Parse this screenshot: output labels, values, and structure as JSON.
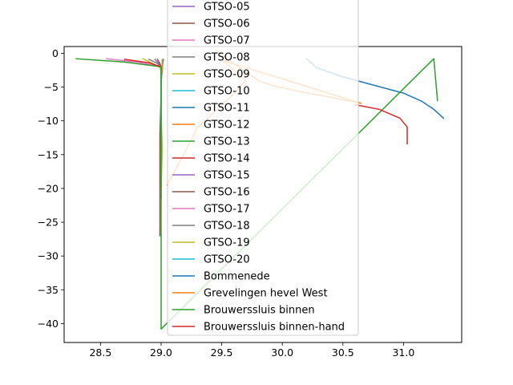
{
  "chart_data": {
    "type": "line",
    "title": "",
    "xlabel": "",
    "ylabel": "",
    "xlim": [
      28.2,
      31.48
    ],
    "ylim": [
      -42.8,
      1.0
    ],
    "xticks": [
      28.5,
      29.0,
      29.5,
      30.0,
      30.5,
      31.0
    ],
    "xtick_labels": [
      "28.5",
      "29.0",
      "29.5",
      "30.0",
      "30.5",
      "31.0"
    ],
    "yticks": [
      0,
      -5,
      -10,
      -15,
      -20,
      -25,
      -30,
      -35,
      -40
    ],
    "ytick_labels": [
      "0",
      "−5",
      "−10",
      "−15",
      "−20",
      "−25",
      "−30",
      "−35",
      "−40"
    ],
    "grid": false,
    "legend_placement": "upper-center",
    "series": [
      {
        "name": "GTSO-05",
        "color": "#9467bd",
        "x": [
          28.95,
          28.98,
          29.0,
          29.0
        ],
        "y": [
          -0.9,
          -1.5,
          -2.0,
          -2.5
        ]
      },
      {
        "name": "GTSO-06",
        "color": "#8c564b",
        "x": [
          28.97,
          28.99,
          29.0,
          29.0
        ],
        "y": [
          -0.9,
          -1.5,
          -2.0,
          -2.6
        ]
      },
      {
        "name": "GTSO-07",
        "color": "#e377c2",
        "x": [
          28.55,
          28.8,
          28.98,
          29.0,
          29.0
        ],
        "y": [
          -0.8,
          -1.3,
          -1.9,
          -2.3,
          -3.0
        ]
      },
      {
        "name": "GTSO-08",
        "color": "#7f7f7f",
        "x": [
          28.9,
          28.97,
          29.0,
          29.0
        ],
        "y": [
          -0.9,
          -1.5,
          -2.1,
          -2.8
        ]
      },
      {
        "name": "GTSO-09",
        "color": "#bcbd22",
        "x": [
          28.85,
          28.93,
          28.99,
          29.0
        ],
        "y": [
          -0.8,
          -1.5,
          -2.1,
          -2.6
        ]
      },
      {
        "name": "GTSO-10",
        "color": "#17becf",
        "x": [
          29.02,
          29.01,
          29.0,
          29.0,
          29.0
        ],
        "y": [
          -0.9,
          -2.0,
          -3.5,
          -5.0,
          -6.5
        ]
      },
      {
        "name": "GTSO-11",
        "color": "#1f77b4",
        "x": [
          29.01,
          29.01,
          29.0,
          29.0,
          29.0
        ],
        "y": [
          -1.0,
          -2.5,
          -4.0,
          -6.0,
          -8.0
        ]
      },
      {
        "name": "GTSO-12",
        "color": "#ff7f0e",
        "x": [
          29.01,
          29.01,
          29.0,
          29.0
        ],
        "y": [
          -0.9,
          -2.5,
          -4.0,
          -5.5
        ]
      },
      {
        "name": "GTSO-13",
        "color": "#2ca02c",
        "x": [
          28.3,
          28.7,
          29.0,
          29.0,
          29.0
        ],
        "y": [
          -0.8,
          -1.3,
          -2.0,
          -3.0,
          -4.0
        ]
      },
      {
        "name": "GTSO-14",
        "color": "#d62728",
        "x": [
          28.7,
          28.9,
          29.0,
          29.0,
          29.0
        ],
        "y": [
          -0.9,
          -1.4,
          -2.0,
          -3.0,
          -4.5
        ]
      },
      {
        "name": "GTSO-15",
        "color": "#9467bd",
        "x": [
          29.0,
          29.0,
          29.0,
          29.0,
          29.0,
          29.0
        ],
        "y": [
          -2.0,
          -5.0,
          -9.0,
          -13.0,
          -17.0,
          -21.5
        ]
      },
      {
        "name": "GTSO-16",
        "color": "#8c564b",
        "x": [
          29.0,
          29.0,
          28.99,
          28.99,
          28.99,
          28.99
        ],
        "y": [
          -2.0,
          -6.0,
          -12.0,
          -18.0,
          -24.0,
          -27.0
        ]
      },
      {
        "name": "GTSO-17",
        "color": "#e377c2",
        "x": [
          29.0,
          29.0,
          29.0,
          29.0
        ],
        "y": [
          -2.0,
          -4.0,
          -6.0,
          -9.0
        ]
      },
      {
        "name": "GTSO-18",
        "color": "#7f7f7f",
        "x": [
          29.0,
          29.0,
          29.0,
          29.0,
          29.0
        ],
        "y": [
          -2.0,
          -5.0,
          -9.0,
          -14.0,
          -20.0
        ]
      },
      {
        "name": "GTSO-19",
        "color": "#bcbd22",
        "x": [
          29.0,
          29.0,
          29.0,
          29.01,
          29.0
        ],
        "y": [
          -2.0,
          -5.0,
          -9.0,
          -14.0,
          -20.0
        ]
      },
      {
        "name": "GTSO-20",
        "color": "#17becf",
        "x": [
          29.0,
          29.0,
          29.0,
          29.0,
          29.0
        ],
        "y": [
          -2.0,
          -4.0,
          -7.0,
          -10.0,
          -13.0
        ]
      },
      {
        "name": "Bommenede",
        "color": "#1f77b4",
        "x": [
          30.2,
          30.28,
          30.5,
          30.75,
          31.0,
          31.15,
          31.25,
          31.33
        ],
        "y": [
          -0.8,
          -2.1,
          -3.5,
          -4.7,
          -5.9,
          -7.1,
          -8.3,
          -9.6
        ]
      },
      {
        "name": "Grevelingen hevel West",
        "color": "#ff7f0e",
        "x": [
          29.45,
          29.6,
          29.7,
          29.82,
          29.95,
          30.15,
          30.4,
          30.65,
          29.5,
          29.6,
          29.7,
          29.6,
          29.45,
          29.3,
          29.2,
          29.05
        ],
        "y": [
          0.5,
          -1.5,
          -2.8,
          -4.2,
          -4.9,
          -5.7,
          -6.5,
          -7.4,
          -1.0,
          -2.5,
          -4.0,
          -6.0,
          -8.5,
          -11.0,
          -14.5,
          -19.5
        ]
      },
      {
        "name": "Brouwerssluis binnen",
        "color": "#2ca02c",
        "x": [
          29.0,
          29.0,
          29.0,
          29.0,
          29.0,
          29.0,
          29.0,
          29.0,
          31.25,
          31.28
        ],
        "y": [
          -2.0,
          -5.0,
          -10.0,
          -15.0,
          -20.0,
          -25.0,
          -30.0,
          -40.8,
          -0.8,
          -7.0
        ]
      },
      {
        "name": "Brouwerssluis binnen-hand",
        "color": "#d62728",
        "x": [
          30.6,
          30.8,
          30.97,
          31.03,
          31.03
        ],
        "y": [
          -7.6,
          -8.3,
          -9.6,
          -10.9,
          -13.4
        ]
      }
    ]
  }
}
